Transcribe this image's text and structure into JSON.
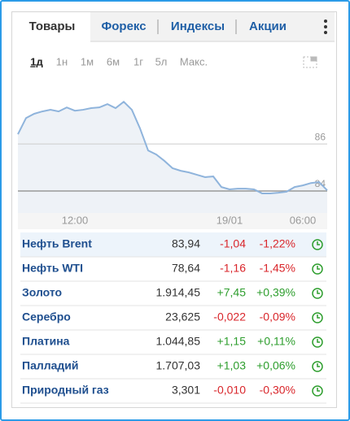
{
  "tabs": [
    "Товары",
    "Форекс",
    "Индексы",
    "Акции"
  ],
  "ranges": [
    "1д",
    "1н",
    "1м",
    "6м",
    "1г",
    "5л",
    "Макс."
  ],
  "chart_data": {
    "type": "line",
    "color": "#8fb4dc",
    "area_color": "#eef2f7",
    "grid": true,
    "categories": [
      null,
      null,
      null,
      null,
      null,
      null,
      null,
      "12:00",
      null,
      null,
      null,
      null,
      null,
      null,
      null,
      null,
      null,
      null,
      null,
      null,
      null,
      null,
      null,
      null,
      null,
      null,
      "19/01",
      null,
      null,
      null,
      null,
      null,
      null,
      null,
      null,
      "06:00",
      null,
      null,
      null
    ],
    "values": [
      86.41,
      87.1,
      87.28,
      87.38,
      87.45,
      87.38,
      87.55,
      87.41,
      87.45,
      87.52,
      87.55,
      87.69,
      87.52,
      87.79,
      87.45,
      86.66,
      85.72,
      85.55,
      85.28,
      84.97,
      84.86,
      84.79,
      84.69,
      84.59,
      84.62,
      84.17,
      84.07,
      84.1,
      84.1,
      84.07,
      83.9,
      83.9,
      83.93,
      83.97,
      84.17,
      84.24,
      84.34,
      84.38,
      84.03
    ],
    "ylim": [
      83.07,
      88.66
    ],
    "yticks": [
      84,
      86
    ]
  },
  "table": {
    "rows": [
      [
        "Нефть Brent",
        "83,94",
        "-1,04",
        "-1,22%"
      ],
      [
        "Нефть WTI",
        "78,64",
        "-1,16",
        "-1,45%"
      ],
      [
        "Золото",
        "1.914,45",
        "+7,45",
        "+0,39%"
      ],
      [
        "Серебро",
        "23,625",
        "-0,022",
        "-0,09%"
      ],
      [
        "Платина",
        "1.044,85",
        "+1,15",
        "+0,11%"
      ],
      [
        "Палладий",
        "1.707,03",
        "+1,03",
        "+0,06%"
      ],
      [
        "Природный газ",
        "3,301",
        "-0,010",
        "-0,30%"
      ]
    ]
  }
}
